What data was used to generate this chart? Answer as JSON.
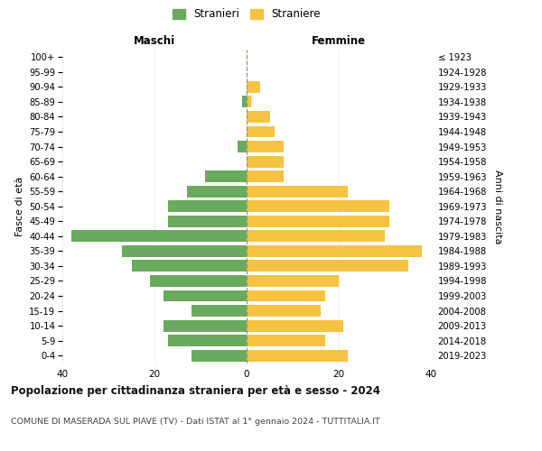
{
  "age_groups": [
    "0-4",
    "5-9",
    "10-14",
    "15-19",
    "20-24",
    "25-29",
    "30-34",
    "35-39",
    "40-44",
    "45-49",
    "50-54",
    "55-59",
    "60-64",
    "65-69",
    "70-74",
    "75-79",
    "80-84",
    "85-89",
    "90-94",
    "95-99",
    "100+"
  ],
  "birth_years": [
    "2019-2023",
    "2014-2018",
    "2009-2013",
    "2004-2008",
    "1999-2003",
    "1994-1998",
    "1989-1993",
    "1984-1988",
    "1979-1983",
    "1974-1978",
    "1969-1973",
    "1964-1968",
    "1959-1963",
    "1954-1958",
    "1949-1953",
    "1944-1948",
    "1939-1943",
    "1934-1938",
    "1929-1933",
    "1924-1928",
    "≤ 1923"
  ],
  "maschi": [
    12,
    17,
    18,
    12,
    18,
    21,
    25,
    27,
    38,
    17,
    17,
    13,
    9,
    0,
    2,
    0,
    0,
    1,
    0,
    0,
    0
  ],
  "femmine": [
    22,
    17,
    21,
    16,
    17,
    20,
    35,
    38,
    30,
    31,
    31,
    22,
    8,
    8,
    8,
    6,
    5,
    1,
    3,
    0,
    0
  ],
  "maschi_color": "#6aaa5e",
  "femmine_color": "#f5c242",
  "grid_color": "#cccccc",
  "center_line_color": "#999966",
  "title": "Popolazione per cittadinanza straniera per età e sesso - 2024",
  "subtitle": "COMUNE DI MASERADA SUL PIAVE (TV) - Dati ISTAT al 1° gennaio 2024 - TUTTITALIA.IT",
  "xlabel_left": "Maschi",
  "xlabel_right": "Femmine",
  "ylabel_left": "Fasce di età",
  "ylabel_right": "Anni di nascita",
  "legend_maschi": "Stranieri",
  "legend_femmine": "Straniere",
  "xlim": 40,
  "background_color": "#ffffff"
}
